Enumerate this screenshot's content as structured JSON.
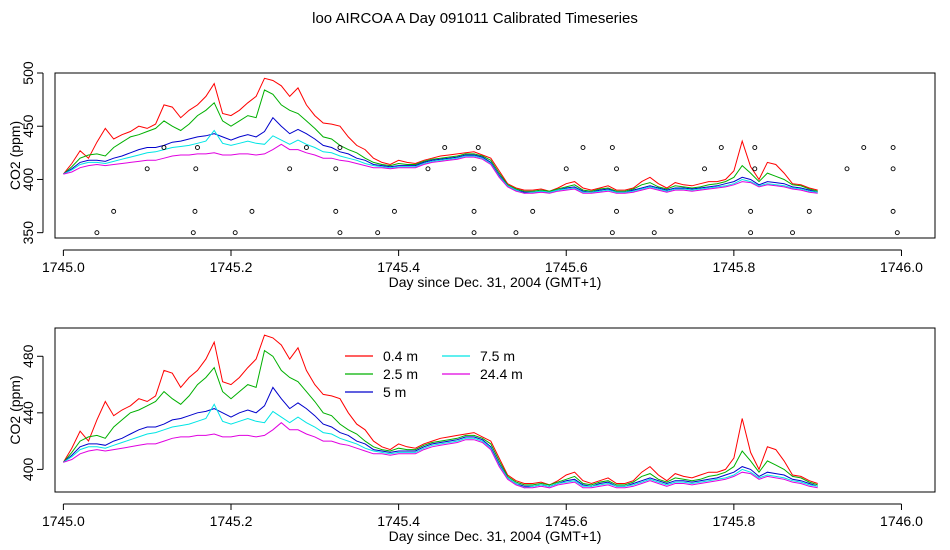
{
  "title": "loo AIRCOA A  Day 091011  Calibrated Timeseries",
  "colors": {
    "0.4 m": "#ff0000",
    "2.5 m": "#00b000",
    "5 m": "#0000cc",
    "7.5 m": "#00e5e5",
    "24.4 m": "#e000e0",
    "markers": "#000000"
  },
  "chart_data": [
    {
      "type": "line",
      "xlabel": "Day since Dec. 31, 2004 (GMT+1)",
      "ylabel": "CO2 (ppm)",
      "xlim": [
        1744.99,
        1746.04
      ],
      "ylim": [
        345,
        500
      ],
      "xticks": [
        "1745.0",
        "1745.2",
        "1745.4",
        "1745.6",
        "1745.8",
        "1746.0"
      ],
      "yticks": [
        "350",
        "400",
        "450",
        "500"
      ],
      "series_ref": "shared",
      "scatter": {
        "name": "markers",
        "points": [
          [
            1745.04,
            350
          ],
          [
            1745.06,
            370
          ],
          [
            1745.1,
            410
          ],
          [
            1745.12,
            430
          ],
          [
            1745.155,
            350
          ],
          [
            1745.157,
            370
          ],
          [
            1745.158,
            410
          ],
          [
            1745.16,
            430
          ],
          [
            1745.205,
            350
          ],
          [
            1745.225,
            370
          ],
          [
            1745.27,
            410
          ],
          [
            1745.29,
            430
          ],
          [
            1745.325,
            370
          ],
          [
            1745.325,
            410
          ],
          [
            1745.33,
            430
          ],
          [
            1745.33,
            350
          ],
          [
            1745.375,
            350
          ],
          [
            1745.395,
            370
          ],
          [
            1745.435,
            410
          ],
          [
            1745.455,
            430
          ],
          [
            1745.49,
            350
          ],
          [
            1745.49,
            370
          ],
          [
            1745.49,
            410
          ],
          [
            1745.495,
            430
          ],
          [
            1745.54,
            350
          ],
          [
            1745.56,
            370
          ],
          [
            1745.6,
            410
          ],
          [
            1745.62,
            430
          ],
          [
            1745.655,
            350
          ],
          [
            1745.66,
            370
          ],
          [
            1745.66,
            410
          ],
          [
            1745.655,
            430
          ],
          [
            1745.705,
            350
          ],
          [
            1745.725,
            370
          ],
          [
            1745.765,
            410
          ],
          [
            1745.785,
            430
          ],
          [
            1745.82,
            350
          ],
          [
            1745.82,
            370
          ],
          [
            1745.825,
            410
          ],
          [
            1745.825,
            430
          ],
          [
            1745.87,
            350
          ],
          [
            1745.89,
            370
          ],
          [
            1745.935,
            410
          ],
          [
            1745.955,
            430
          ],
          [
            1745.99,
            370
          ],
          [
            1745.99,
            410
          ],
          [
            1745.99,
            430
          ],
          [
            1745.995,
            350
          ]
        ]
      }
    },
    {
      "type": "line",
      "xlabel": "Day since Dec. 31, 2004 (GMT+1)",
      "ylabel": "CO2 (ppm)",
      "xlim": [
        1744.99,
        1746.04
      ],
      "ylim": [
        384,
        500
      ],
      "xticks": [
        "1745.0",
        "1745.2",
        "1745.4",
        "1745.6",
        "1745.8",
        "1746.0"
      ],
      "yticks": [
        "400",
        "440",
        "480"
      ],
      "legend_placement": "top-center",
      "series_ref": "shared"
    }
  ],
  "series": {
    "x_start": 1745.0,
    "x_step": 0.01,
    "data": [
      {
        "name": "0.4 m",
        "values": [
          405,
          415,
          427,
          420,
          435,
          448,
          438,
          442,
          445,
          450,
          448,
          452,
          470,
          468,
          458,
          465,
          470,
          478,
          490,
          462,
          460,
          465,
          472,
          478,
          495,
          493,
          488,
          478,
          486,
          470,
          460,
          453,
          452,
          450,
          440,
          432,
          428,
          420,
          416,
          414,
          418,
          416,
          415,
          418,
          420,
          422,
          423,
          424,
          425,
          426,
          423,
          420,
          408,
          396,
          392,
          390,
          390,
          391,
          389,
          392,
          396,
          398,
          392,
          390,
          392,
          394,
          390,
          390,
          392,
          398,
          402,
          396,
          392,
          397,
          395,
          394,
          396,
          398,
          398,
          400,
          408,
          436,
          412,
          400,
          416,
          414,
          406,
          396,
          395,
          392,
          390
        ]
      },
      {
        "name": "2.5 m",
        "values": [
          405,
          412,
          420,
          423,
          424,
          422,
          430,
          435,
          440,
          442,
          445,
          448,
          455,
          450,
          446,
          452,
          460,
          465,
          472,
          455,
          450,
          455,
          460,
          458,
          484,
          480,
          470,
          465,
          462,
          455,
          448,
          440,
          438,
          432,
          428,
          425,
          420,
          416,
          414,
          413,
          415,
          414,
          414,
          417,
          419,
          420,
          421,
          422,
          424,
          424,
          422,
          418,
          406,
          395,
          391,
          389,
          389,
          390,
          389,
          391,
          393,
          395,
          390,
          389,
          391,
          392,
          389,
          389,
          391,
          395,
          397,
          393,
          391,
          394,
          393,
          392,
          393,
          395,
          396,
          398,
          402,
          413,
          406,
          398,
          406,
          403,
          400,
          395,
          394,
          391,
          389
        ]
      },
      {
        "name": "5 m",
        "values": [
          405,
          410,
          416,
          418,
          418,
          417,
          420,
          422,
          425,
          428,
          430,
          430,
          432,
          435,
          436,
          438,
          440,
          441,
          443,
          440,
          437,
          440,
          442,
          440,
          445,
          458,
          450,
          443,
          447,
          443,
          438,
          432,
          430,
          426,
          424,
          420,
          418,
          414,
          413,
          412,
          413,
          413,
          413,
          416,
          418,
          419,
          420,
          421,
          423,
          423,
          421,
          416,
          404,
          394,
          390,
          388,
          388,
          389,
          388,
          390,
          392,
          393,
          389,
          388,
          390,
          391,
          388,
          388,
          390,
          392,
          394,
          392,
          390,
          392,
          392,
          391,
          392,
          393,
          394,
          396,
          398,
          402,
          400,
          395,
          398,
          397,
          396,
          393,
          392,
          390,
          388
        ]
      },
      {
        "name": "7.5 m",
        "values": [
          405,
          409,
          414,
          416,
          416,
          415,
          417,
          419,
          421,
          423,
          425,
          426,
          428,
          430,
          431,
          432,
          434,
          436,
          446,
          434,
          432,
          434,
          436,
          434,
          433,
          441,
          437,
          433,
          437,
          433,
          430,
          426,
          425,
          422,
          420,
          418,
          415,
          413,
          412,
          411,
          412,
          412,
          412,
          415,
          417,
          418,
          419,
          420,
          422,
          422,
          420,
          415,
          403,
          394,
          390,
          387,
          388,
          389,
          388,
          390,
          391,
          392,
          388,
          388,
          389,
          390,
          388,
          388,
          389,
          391,
          393,
          391,
          389,
          391,
          391,
          390,
          391,
          392,
          393,
          394,
          396,
          400,
          398,
          394,
          396,
          395,
          394,
          392,
          391,
          389,
          388
        ]
      },
      {
        "name": "24.4 m",
        "values": [
          405,
          407,
          411,
          413,
          414,
          413,
          414,
          415,
          416,
          417,
          418,
          418,
          420,
          422,
          423,
          423,
          424,
          424,
          425,
          423,
          423,
          424,
          424,
          423,
          424,
          428,
          433,
          428,
          428,
          425,
          423,
          420,
          420,
          418,
          417,
          415,
          413,
          411,
          411,
          410,
          411,
          411,
          411,
          414,
          416,
          417,
          418,
          419,
          421,
          421,
          419,
          414,
          402,
          393,
          389,
          387,
          387,
          388,
          387,
          389,
          390,
          391,
          387,
          387,
          388,
          389,
          387,
          387,
          388,
          390,
          392,
          390,
          388,
          390,
          390,
          389,
          390,
          391,
          392,
          393,
          395,
          398,
          397,
          393,
          395,
          394,
          393,
          391,
          390,
          388,
          387
        ]
      }
    ]
  },
  "legend": {
    "entries": [
      "0.4 m",
      "2.5 m",
      "5 m",
      "7.5 m",
      "24.4 m"
    ]
  }
}
